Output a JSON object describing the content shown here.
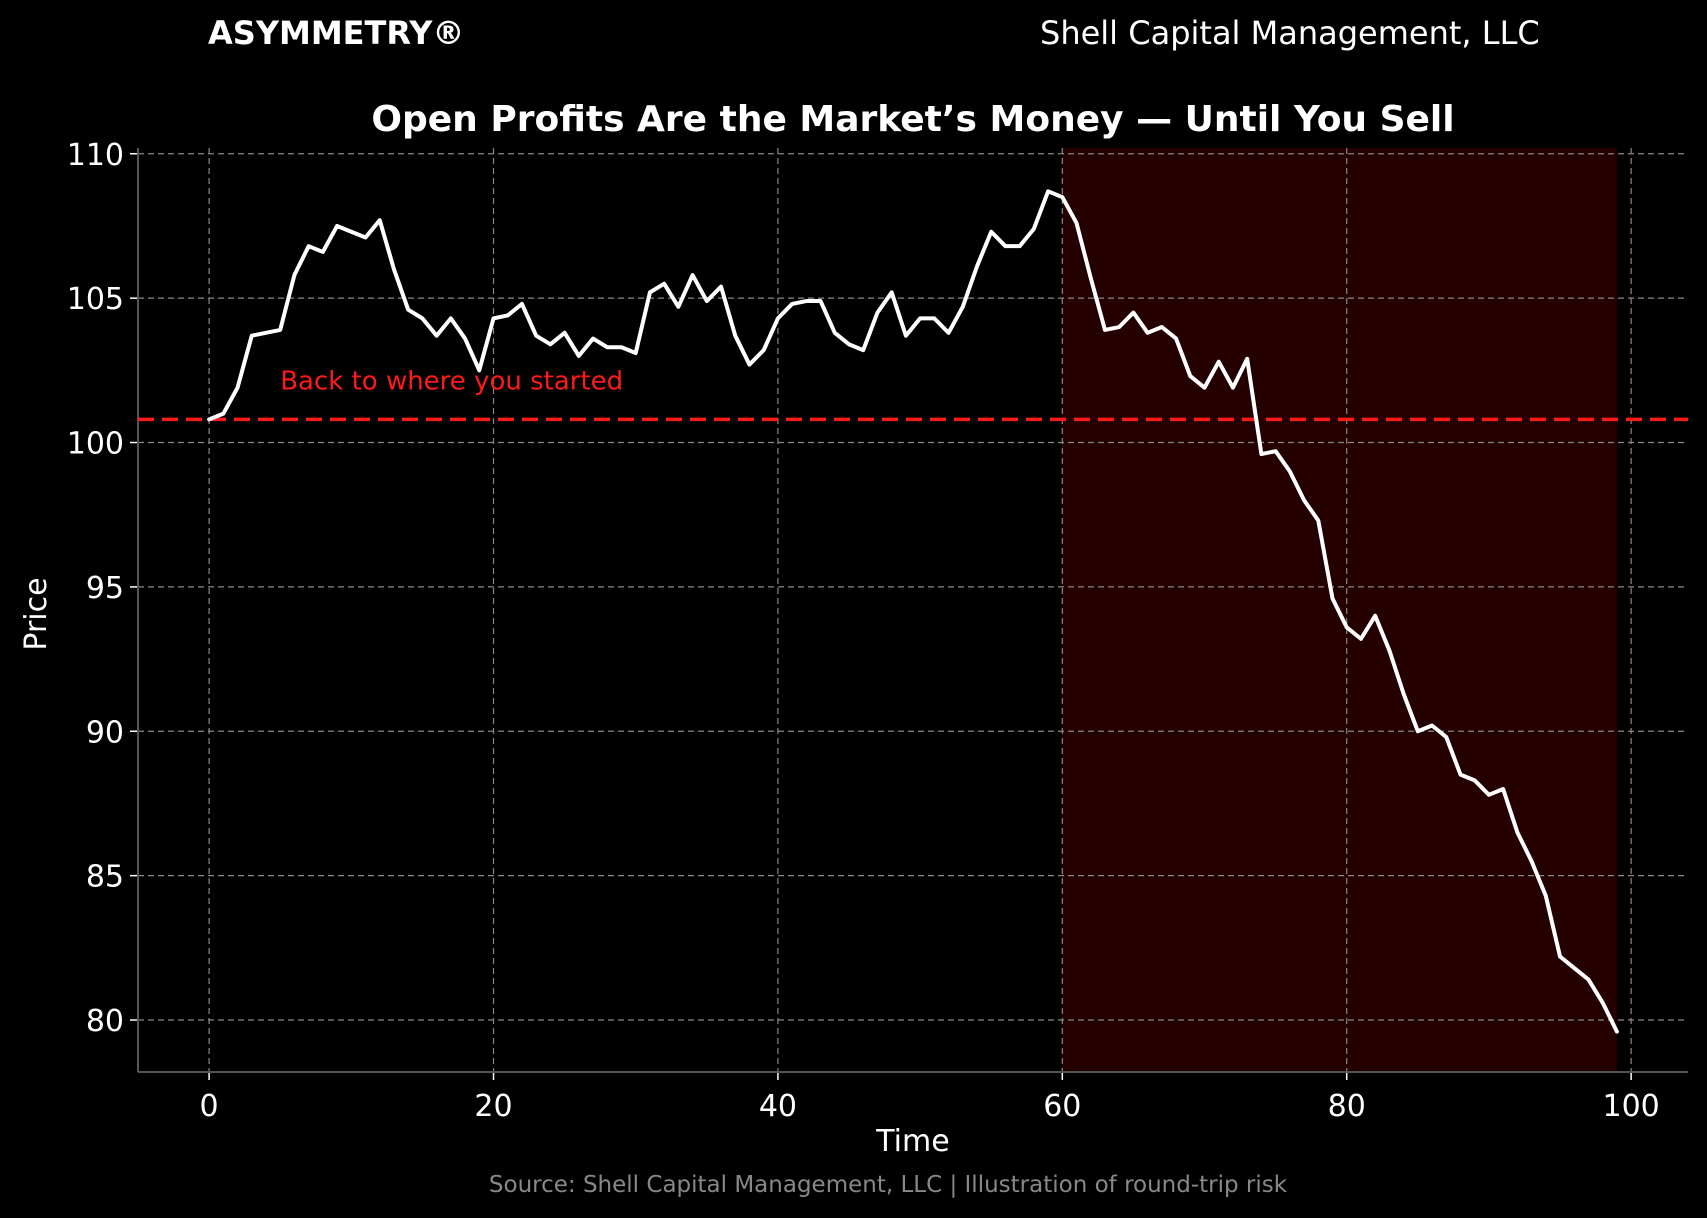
{
  "header": {
    "brand": "ASYMMETRY®",
    "company": "Shell Capital Management, LLC"
  },
  "chart_data": {
    "type": "line",
    "title": "Open Profits Are the Market’s Money — Until You Sell",
    "xlabel": "Time",
    "ylabel": "Price",
    "xlim": [
      -5,
      104
    ],
    "ylim": [
      78.2,
      110.2
    ],
    "xticks": [
      0,
      20,
      40,
      60,
      80,
      100
    ],
    "yticks": [
      80,
      85,
      90,
      95,
      100,
      105,
      110
    ],
    "grid": true,
    "source": "Source: Shell Capital Management, LLC | Illustration of round-trip risk",
    "series": [
      {
        "name": "",
        "color": "#ffffff",
        "x": [
          0,
          1,
          2,
          3,
          4,
          5,
          6,
          7,
          8,
          9,
          10,
          11,
          12,
          13,
          14,
          15,
          16,
          17,
          18,
          19,
          20,
          21,
          22,
          23,
          24,
          25,
          26,
          27,
          28,
          29,
          30,
          31,
          32,
          33,
          34,
          35,
          36,
          37,
          38,
          39,
          40,
          41,
          42,
          43,
          44,
          45,
          46,
          47,
          48,
          49,
          50,
          51,
          52,
          53,
          54,
          55,
          56,
          57,
          58,
          59,
          60,
          61,
          62,
          63,
          64,
          65,
          66,
          67,
          68,
          69,
          70,
          71,
          72,
          73,
          74,
          75,
          76,
          77,
          78,
          79,
          80,
          81,
          82,
          83,
          84,
          85,
          86,
          87,
          88,
          89,
          90,
          91,
          92,
          93,
          94,
          95,
          96,
          97,
          98,
          99
        ],
        "values": [
          100.8,
          101.0,
          101.9,
          103.7,
          103.8,
          103.9,
          105.8,
          106.8,
          106.6,
          107.5,
          107.3,
          107.1,
          107.7,
          106.0,
          104.6,
          104.3,
          103.7,
          104.3,
          103.6,
          102.5,
          104.3,
          104.4,
          104.8,
          103.7,
          103.4,
          103.8,
          103.0,
          103.6,
          103.3,
          103.3,
          103.1,
          105.2,
          105.5,
          104.7,
          105.8,
          104.9,
          105.4,
          103.7,
          102.7,
          103.2,
          104.3,
          104.8,
          104.9,
          104.9,
          103.8,
          103.4,
          103.2,
          104.5,
          105.2,
          103.7,
          104.3,
          104.3,
          103.8,
          104.7,
          106.1,
          107.3,
          106.8,
          106.8,
          107.4,
          108.7,
          108.5,
          107.6,
          105.7,
          103.9,
          104.0,
          104.5,
          103.8,
          104.0,
          103.6,
          102.3,
          101.9,
          102.8,
          101.9,
          102.9,
          99.6,
          99.7,
          99.0,
          98.0,
          97.3,
          94.6,
          93.6,
          93.2,
          94.0,
          92.8,
          91.3,
          90.0,
          90.2,
          89.8,
          88.5,
          88.3,
          87.8,
          88.0,
          86.5,
          85.5,
          84.3,
          82.2,
          81.8,
          81.4,
          80.6,
          79.6
        ]
      }
    ],
    "baseline": {
      "y": 100.8,
      "color": "#ff1a1a",
      "label": "Back to where you started",
      "label_x": 5
    },
    "shaded_region": {
      "x_start": 60,
      "x_end": 99,
      "color": "#250000"
    },
    "colors": {
      "background": "#000000",
      "grid": "#888888",
      "text": "#ffffff",
      "source_text": "#888888",
      "axis": "#555555"
    }
  }
}
